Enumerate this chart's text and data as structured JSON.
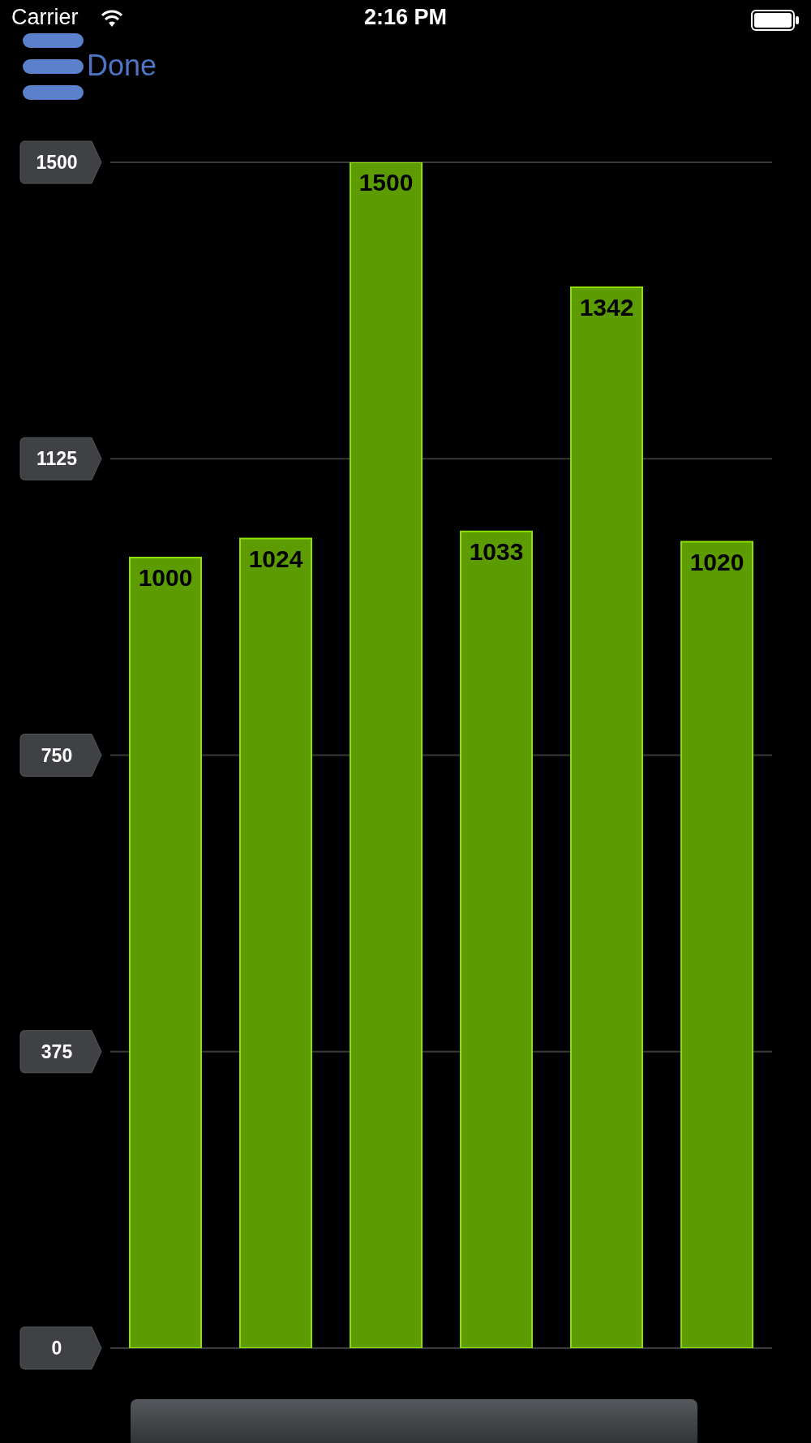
{
  "chart_data": {
    "type": "bar",
    "categories": [
      null,
      null,
      null,
      null,
      null,
      null
    ],
    "values": [
      1000,
      1024,
      1500,
      1033,
      1342,
      1020
    ],
    "color": "#5c9c00",
    "ylim": [
      0,
      1500
    ],
    "yticks": [
      0,
      375,
      750,
      1125,
      1500
    ],
    "grid": "y",
    "data_labels": true,
    "annotations": [
      "Carrier",
      "2:16 PM",
      "Done"
    ]
  }
}
